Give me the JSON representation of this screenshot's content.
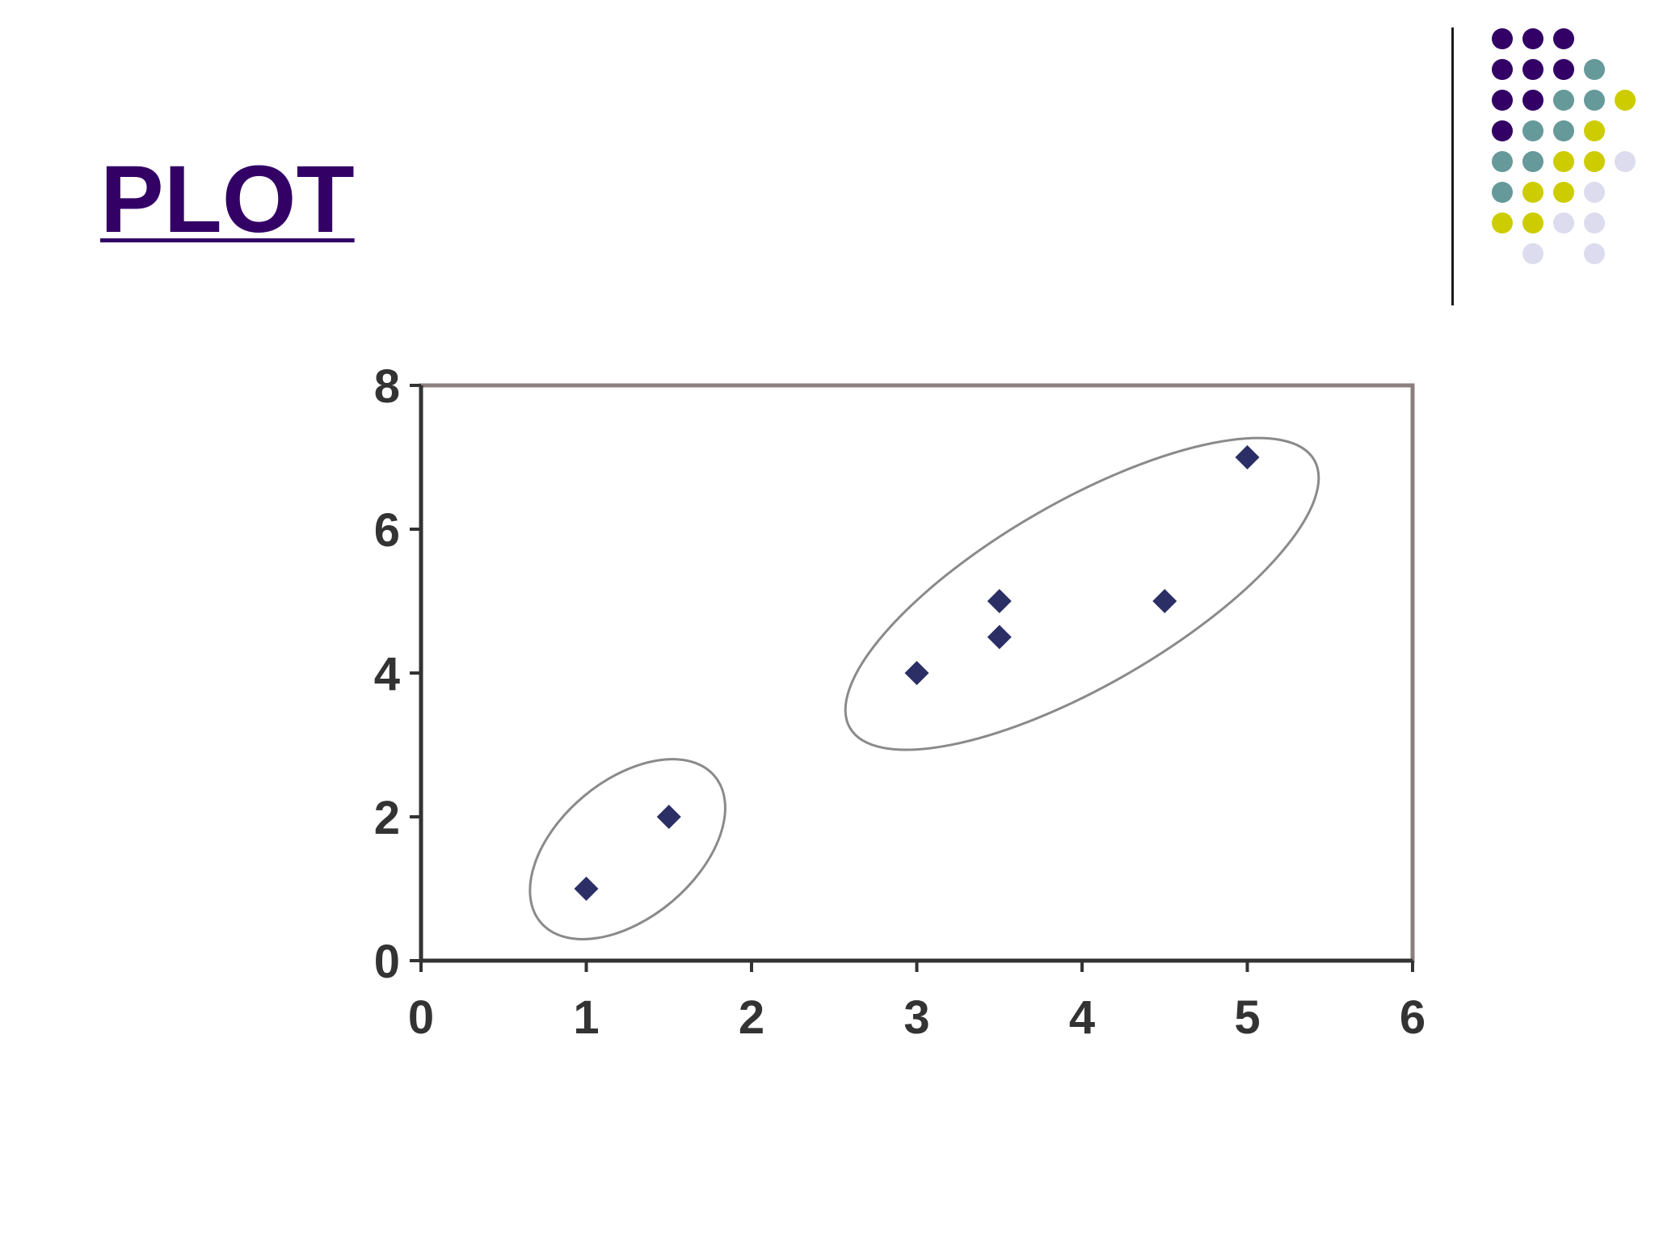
{
  "slide": {
    "title": "PLOT"
  },
  "decoration": {
    "colors": {
      "purple": "#330066",
      "teal": "#669999",
      "olive": "#cccc00",
      "lavender": "#dcdcee"
    },
    "dot_grid": [
      [
        "purple",
        "purple",
        "purple",
        null,
        null
      ],
      [
        "purple",
        "purple",
        "purple",
        "teal",
        null
      ],
      [
        "purple",
        "purple",
        "teal",
        "teal",
        "olive"
      ],
      [
        "purple",
        "teal",
        "teal",
        "olive",
        null
      ],
      [
        "teal",
        "teal",
        "olive",
        "olive",
        "lavender"
      ],
      [
        "teal",
        "olive",
        "olive",
        "lavender",
        null
      ],
      [
        "olive",
        "olive",
        "lavender",
        "lavender",
        null
      ],
      [
        null,
        "lavender",
        null,
        "lavender",
        null
      ]
    ]
  },
  "chart_data": {
    "type": "scatter",
    "title": "",
    "xlabel": "",
    "ylabel": "",
    "xlim": [
      0,
      6
    ],
    "ylim": [
      0,
      8
    ],
    "xticks": [
      0,
      1,
      2,
      3,
      4,
      5,
      6
    ],
    "yticks": [
      0,
      2,
      4,
      6,
      8
    ],
    "grid": false,
    "marker_color": "#2b2f66",
    "axis_color": "#333333",
    "frame_color": "#8c7f7f",
    "ellipse_color": "#8a8a8a",
    "points": [
      {
        "x": 1,
        "y": 1
      },
      {
        "x": 1.5,
        "y": 2
      },
      {
        "x": 3,
        "y": 4
      },
      {
        "x": 3.5,
        "y": 4.5
      },
      {
        "x": 3.5,
        "y": 5
      },
      {
        "x": 4.5,
        "y": 5
      },
      {
        "x": 5,
        "y": 7
      }
    ],
    "clusters": [
      {
        "members": [
          0,
          1
        ],
        "center": [
          1.25,
          1.55
        ],
        "angle_deg": -40
      },
      {
        "members": [
          2,
          3,
          4,
          5,
          6
        ],
        "center": [
          4.0,
          5.1
        ],
        "angle_deg": -30
      }
    ]
  }
}
